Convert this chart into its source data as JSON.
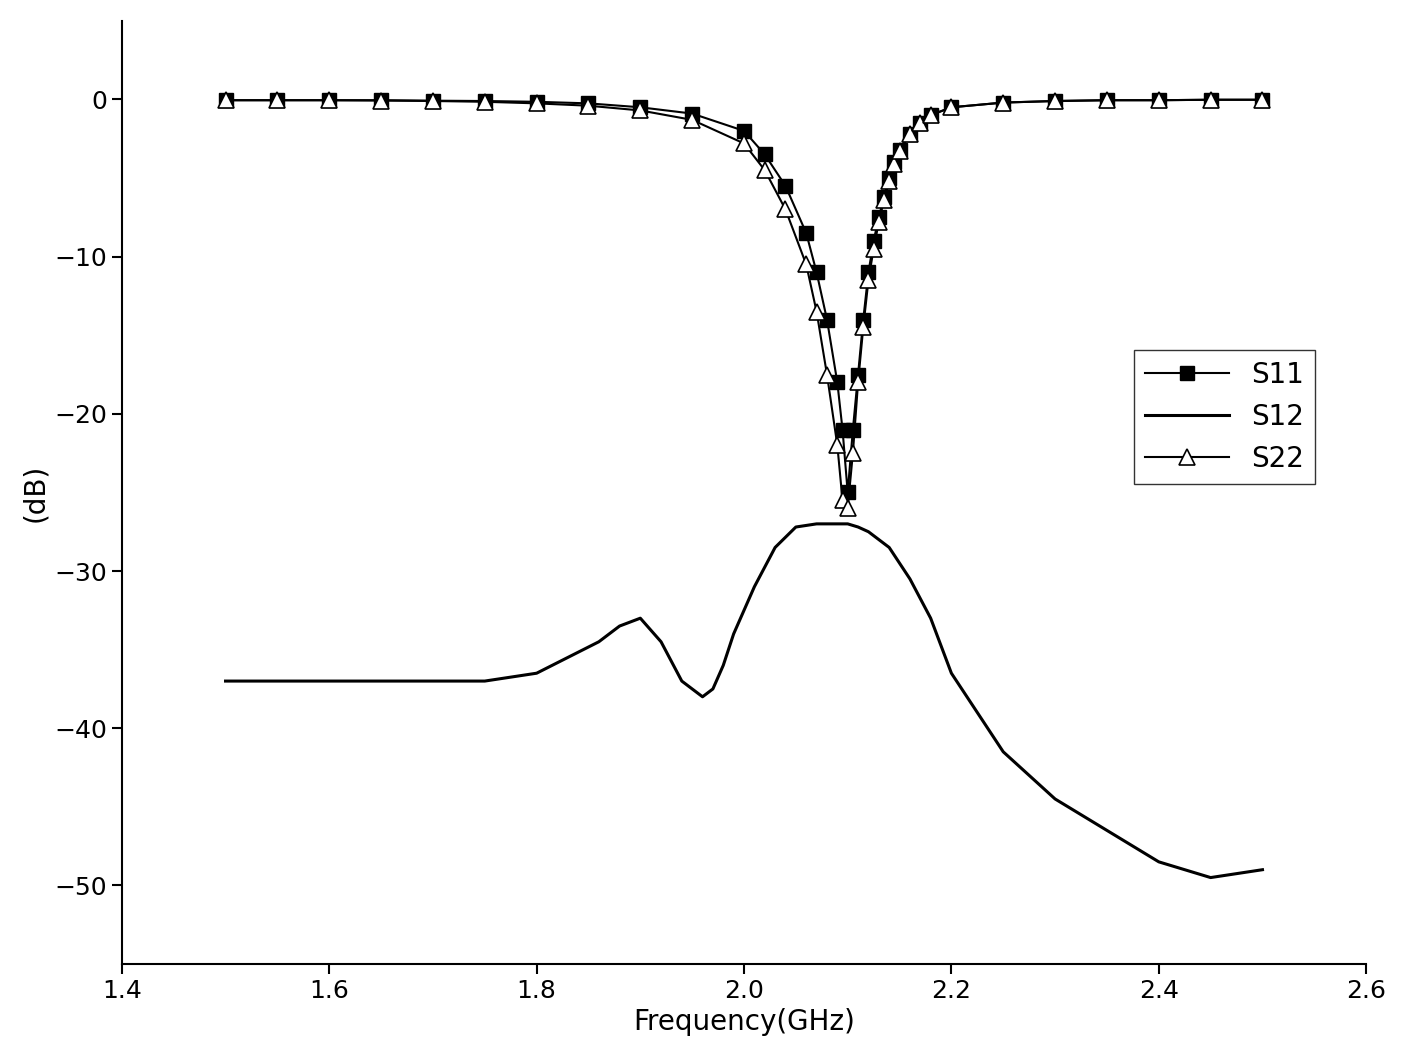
{
  "title": "",
  "xlabel": "Frequency(GHz)",
  "ylabel": "(dB)",
  "xlim": [
    1.4,
    2.6
  ],
  "ylim": [
    -55,
    5
  ],
  "yticks": [
    0,
    -10,
    -20,
    -30,
    -40,
    -50
  ],
  "xticks": [
    1.4,
    1.6,
    1.8,
    2.0,
    2.2,
    2.4,
    2.6
  ],
  "s11_freq": [
    1.5,
    1.55,
    1.6,
    1.65,
    1.7,
    1.75,
    1.8,
    1.85,
    1.9,
    1.95,
    2.0,
    2.02,
    2.04,
    2.06,
    2.07,
    2.08,
    2.09,
    2.095,
    2.1,
    2.105,
    2.11,
    2.115,
    2.12,
    2.125,
    2.13,
    2.135,
    2.14,
    2.145,
    2.15,
    2.16,
    2.17,
    2.18,
    2.2,
    2.25,
    2.3,
    2.35,
    2.4,
    2.45,
    2.5
  ],
  "s11_vals": [
    -0.05,
    -0.05,
    -0.05,
    -0.05,
    -0.08,
    -0.1,
    -0.15,
    -0.25,
    -0.5,
    -0.9,
    -2.0,
    -3.5,
    -5.5,
    -8.5,
    -11.0,
    -14.0,
    -18.0,
    -21.0,
    -25.0,
    -21.0,
    -17.5,
    -14.0,
    -11.0,
    -9.0,
    -7.5,
    -6.2,
    -5.0,
    -4.0,
    -3.2,
    -2.2,
    -1.5,
    -1.0,
    -0.5,
    -0.2,
    -0.1,
    -0.05,
    -0.05,
    -0.02,
    -0.02
  ],
  "s22_freq": [
    1.5,
    1.55,
    1.6,
    1.65,
    1.7,
    1.75,
    1.8,
    1.85,
    1.9,
    1.95,
    2.0,
    2.02,
    2.04,
    2.06,
    2.07,
    2.08,
    2.09,
    2.095,
    2.1,
    2.105,
    2.11,
    2.115,
    2.12,
    2.125,
    2.13,
    2.135,
    2.14,
    2.145,
    2.15,
    2.16,
    2.17,
    2.18,
    2.2,
    2.25,
    2.3,
    2.35,
    2.4,
    2.45,
    2.5
  ],
  "s22_vals": [
    -0.05,
    -0.05,
    -0.05,
    -0.07,
    -0.1,
    -0.15,
    -0.25,
    -0.4,
    -0.7,
    -1.3,
    -2.8,
    -4.5,
    -7.0,
    -10.5,
    -13.5,
    -17.5,
    -22.0,
    -25.5,
    -26.0,
    -22.5,
    -18.0,
    -14.5,
    -11.5,
    -9.5,
    -7.8,
    -6.4,
    -5.2,
    -4.1,
    -3.3,
    -2.2,
    -1.5,
    -1.0,
    -0.5,
    -0.2,
    -0.1,
    -0.05,
    -0.05,
    -0.02,
    -0.02
  ],
  "s12_freq": [
    1.5,
    1.55,
    1.6,
    1.65,
    1.7,
    1.75,
    1.8,
    1.83,
    1.86,
    1.88,
    1.9,
    1.92,
    1.94,
    1.96,
    1.97,
    1.98,
    1.99,
    2.0,
    2.01,
    2.03,
    2.05,
    2.07,
    2.09,
    2.1,
    2.11,
    2.12,
    2.13,
    2.14,
    2.15,
    2.16,
    2.18,
    2.2,
    2.25,
    2.3,
    2.35,
    2.4,
    2.45,
    2.5
  ],
  "s12_vals": [
    -37.0,
    -37.0,
    -37.0,
    -37.0,
    -37.0,
    -37.0,
    -36.5,
    -35.5,
    -34.5,
    -33.5,
    -33.0,
    -34.5,
    -37.0,
    -38.0,
    -37.5,
    -36.0,
    -34.0,
    -32.5,
    -31.0,
    -28.5,
    -27.2,
    -27.0,
    -27.0,
    -27.0,
    -27.2,
    -27.5,
    -28.0,
    -28.5,
    -29.5,
    -30.5,
    -33.0,
    -36.5,
    -41.5,
    -44.5,
    -46.5,
    -48.5,
    -49.5,
    -49.0
  ],
  "s11_color": "#000000",
  "s22_color": "#000000",
  "s12_color": "#000000",
  "background_color": "#ffffff",
  "fontsize_label": 20,
  "fontsize_tick": 18,
  "fontsize_legend": 20
}
